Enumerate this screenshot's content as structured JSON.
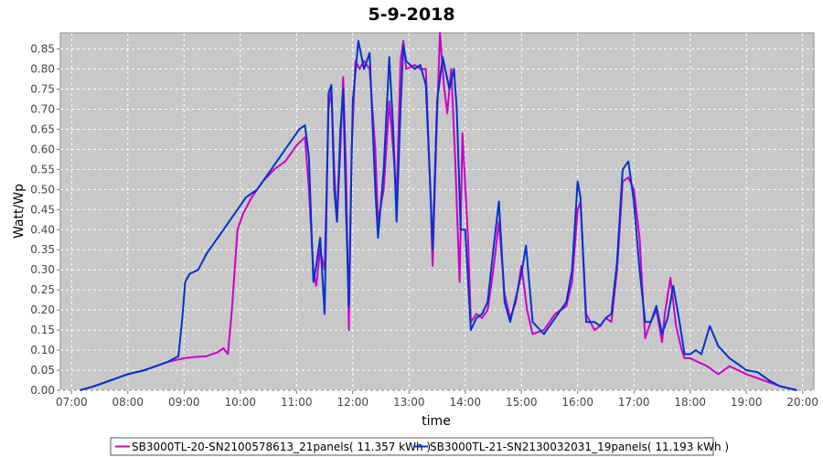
{
  "chart_data": {
    "type": "line",
    "title": "5-9-2018",
    "xlabel": "time",
    "ylabel": "Watt/Wp",
    "x_ticks": [
      "07:00",
      "08:00",
      "09:00",
      "10:00",
      "11:00",
      "12:00",
      "13:00",
      "14:00",
      "15:00",
      "16:00",
      "17:00",
      "18:00",
      "19:00",
      "20:00"
    ],
    "y_ticks": [
      "0.00",
      "0.05",
      "0.10",
      "0.15",
      "0.20",
      "0.25",
      "0.30",
      "0.35",
      "0.40",
      "0.45",
      "0.50",
      "0.55",
      "0.60",
      "0.65",
      "0.70",
      "0.75",
      "0.80",
      "0.85"
    ],
    "xlim": [
      6.8,
      20.2
    ],
    "ylim": [
      0,
      0.89
    ],
    "grid": true,
    "legend_position": "bottom",
    "series": [
      {
        "name": "SB3000TL-20-SN2100578613_21panels( 11.357 kWh )",
        "color": "#cc00cc",
        "points": [
          [
            7.15,
            0.0
          ],
          [
            7.4,
            0.01
          ],
          [
            7.7,
            0.025
          ],
          [
            8.0,
            0.04
          ],
          [
            8.3,
            0.05
          ],
          [
            8.5,
            0.06
          ],
          [
            8.7,
            0.07
          ],
          [
            9.0,
            0.08
          ],
          [
            9.2,
            0.083
          ],
          [
            9.4,
            0.085
          ],
          [
            9.6,
            0.095
          ],
          [
            9.7,
            0.105
          ],
          [
            9.78,
            0.09
          ],
          [
            9.85,
            0.2
          ],
          [
            9.95,
            0.4
          ],
          [
            10.05,
            0.44
          ],
          [
            10.2,
            0.48
          ],
          [
            10.4,
            0.52
          ],
          [
            10.6,
            0.55
          ],
          [
            10.8,
            0.57
          ],
          [
            11.0,
            0.61
          ],
          [
            11.15,
            0.63
          ],
          [
            11.22,
            0.5
          ],
          [
            11.3,
            0.3
          ],
          [
            11.35,
            0.26
          ],
          [
            11.42,
            0.35
          ],
          [
            11.5,
            0.3
          ],
          [
            11.57,
            0.7
          ],
          [
            11.62,
            0.75
          ],
          [
            11.67,
            0.55
          ],
          [
            11.72,
            0.42
          ],
          [
            11.78,
            0.6
          ],
          [
            11.83,
            0.78
          ],
          [
            11.88,
            0.55
          ],
          [
            11.93,
            0.15
          ],
          [
            11.98,
            0.6
          ],
          [
            12.05,
            0.82
          ],
          [
            12.12,
            0.8
          ],
          [
            12.2,
            0.82
          ],
          [
            12.3,
            0.8
          ],
          [
            12.4,
            0.6
          ],
          [
            12.45,
            0.42
          ],
          [
            12.55,
            0.5
          ],
          [
            12.65,
            0.72
          ],
          [
            12.72,
            0.6
          ],
          [
            12.78,
            0.48
          ],
          [
            12.85,
            0.82
          ],
          [
            12.9,
            0.87
          ],
          [
            12.95,
            0.8
          ],
          [
            13.1,
            0.81
          ],
          [
            13.2,
            0.8
          ],
          [
            13.3,
            0.8
          ],
          [
            13.38,
            0.5
          ],
          [
            13.42,
            0.31
          ],
          [
            13.48,
            0.6
          ],
          [
            13.55,
            0.89
          ],
          [
            13.62,
            0.76
          ],
          [
            13.68,
            0.69
          ],
          [
            13.75,
            0.8
          ],
          [
            13.82,
            0.58
          ],
          [
            13.9,
            0.27
          ],
          [
            13.95,
            0.64
          ],
          [
            14.05,
            0.38
          ],
          [
            14.1,
            0.17
          ],
          [
            14.2,
            0.19
          ],
          [
            14.3,
            0.18
          ],
          [
            14.4,
            0.2
          ],
          [
            14.5,
            0.3
          ],
          [
            14.6,
            0.42
          ],
          [
            14.7,
            0.24
          ],
          [
            14.8,
            0.18
          ],
          [
            14.9,
            0.22
          ],
          [
            15.0,
            0.31
          ],
          [
            15.1,
            0.2
          ],
          [
            15.2,
            0.14
          ],
          [
            15.4,
            0.15
          ],
          [
            15.6,
            0.19
          ],
          [
            15.8,
            0.21
          ],
          [
            15.9,
            0.27
          ],
          [
            16.0,
            0.45
          ],
          [
            16.05,
            0.47
          ],
          [
            16.15,
            0.19
          ],
          [
            16.3,
            0.15
          ],
          [
            16.4,
            0.16
          ],
          [
            16.5,
            0.18
          ],
          [
            16.6,
            0.17
          ],
          [
            16.7,
            0.3
          ],
          [
            16.8,
            0.52
          ],
          [
            16.9,
            0.53
          ],
          [
            17.0,
            0.5
          ],
          [
            17.1,
            0.38
          ],
          [
            17.2,
            0.13
          ],
          [
            17.3,
            0.17
          ],
          [
            17.4,
            0.2
          ],
          [
            17.5,
            0.12
          ],
          [
            17.55,
            0.19
          ],
          [
            17.65,
            0.28
          ],
          [
            17.75,
            0.16
          ],
          [
            17.85,
            0.1
          ],
          [
            17.9,
            0.08
          ],
          [
            18.0,
            0.08
          ],
          [
            18.3,
            0.06
          ],
          [
            18.5,
            0.04
          ],
          [
            18.7,
            0.06
          ],
          [
            19.0,
            0.04
          ],
          [
            19.3,
            0.025
          ],
          [
            19.6,
            0.01
          ],
          [
            19.9,
            0.0
          ]
        ]
      },
      {
        "name": "SB3000TL-21-SN2130032031_19panels( 11.193 kWh )",
        "color": "#0033cc",
        "points": [
          [
            7.15,
            0.0
          ],
          [
            7.4,
            0.01
          ],
          [
            7.7,
            0.025
          ],
          [
            8.0,
            0.04
          ],
          [
            8.3,
            0.05
          ],
          [
            8.5,
            0.06
          ],
          [
            8.7,
            0.07
          ],
          [
            8.9,
            0.085
          ],
          [
            8.97,
            0.18
          ],
          [
            9.02,
            0.27
          ],
          [
            9.1,
            0.29
          ],
          [
            9.25,
            0.3
          ],
          [
            9.4,
            0.34
          ],
          [
            9.6,
            0.38
          ],
          [
            9.75,
            0.41
          ],
          [
            9.9,
            0.44
          ],
          [
            10.1,
            0.48
          ],
          [
            10.3,
            0.5
          ],
          [
            10.5,
            0.54
          ],
          [
            10.7,
            0.58
          ],
          [
            10.9,
            0.62
          ],
          [
            11.05,
            0.65
          ],
          [
            11.15,
            0.66
          ],
          [
            11.22,
            0.58
          ],
          [
            11.3,
            0.27
          ],
          [
            11.35,
            0.31
          ],
          [
            11.42,
            0.38
          ],
          [
            11.5,
            0.19
          ],
          [
            11.57,
            0.74
          ],
          [
            11.62,
            0.76
          ],
          [
            11.67,
            0.5
          ],
          [
            11.72,
            0.42
          ],
          [
            11.78,
            0.65
          ],
          [
            11.83,
            0.75
          ],
          [
            11.88,
            0.45
          ],
          [
            11.93,
            0.21
          ],
          [
            12.0,
            0.72
          ],
          [
            12.1,
            0.87
          ],
          [
            12.2,
            0.8
          ],
          [
            12.3,
            0.84
          ],
          [
            12.4,
            0.5
          ],
          [
            12.45,
            0.38
          ],
          [
            12.55,
            0.55
          ],
          [
            12.65,
            0.83
          ],
          [
            12.72,
            0.65
          ],
          [
            12.78,
            0.42
          ],
          [
            12.85,
            0.7
          ],
          [
            12.9,
            0.86
          ],
          [
            12.95,
            0.82
          ],
          [
            13.1,
            0.8
          ],
          [
            13.2,
            0.81
          ],
          [
            13.3,
            0.76
          ],
          [
            13.38,
            0.5
          ],
          [
            13.42,
            0.35
          ],
          [
            13.5,
            0.72
          ],
          [
            13.6,
            0.83
          ],
          [
            13.72,
            0.75
          ],
          [
            13.8,
            0.8
          ],
          [
            13.85,
            0.7
          ],
          [
            13.92,
            0.4
          ],
          [
            14.0,
            0.4
          ],
          [
            14.1,
            0.15
          ],
          [
            14.2,
            0.18
          ],
          [
            14.3,
            0.19
          ],
          [
            14.4,
            0.22
          ],
          [
            14.5,
            0.35
          ],
          [
            14.6,
            0.47
          ],
          [
            14.7,
            0.22
          ],
          [
            14.8,
            0.17
          ],
          [
            14.9,
            0.23
          ],
          [
            15.0,
            0.29
          ],
          [
            15.08,
            0.36
          ],
          [
            15.2,
            0.17
          ],
          [
            15.4,
            0.14
          ],
          [
            15.6,
            0.18
          ],
          [
            15.8,
            0.22
          ],
          [
            15.9,
            0.3
          ],
          [
            16.0,
            0.52
          ],
          [
            16.05,
            0.48
          ],
          [
            16.15,
            0.17
          ],
          [
            16.3,
            0.17
          ],
          [
            16.4,
            0.16
          ],
          [
            16.5,
            0.18
          ],
          [
            16.6,
            0.19
          ],
          [
            16.7,
            0.32
          ],
          [
            16.8,
            0.55
          ],
          [
            16.9,
            0.57
          ],
          [
            17.0,
            0.47
          ],
          [
            17.1,
            0.3
          ],
          [
            17.2,
            0.17
          ],
          [
            17.3,
            0.17
          ],
          [
            17.4,
            0.21
          ],
          [
            17.5,
            0.14
          ],
          [
            17.6,
            0.18
          ],
          [
            17.7,
            0.26
          ],
          [
            17.8,
            0.18
          ],
          [
            17.9,
            0.09
          ],
          [
            18.0,
            0.09
          ],
          [
            18.1,
            0.1
          ],
          [
            18.2,
            0.09
          ],
          [
            18.35,
            0.16
          ],
          [
            18.5,
            0.11
          ],
          [
            18.7,
            0.08
          ],
          [
            18.9,
            0.06
          ],
          [
            19.0,
            0.05
          ],
          [
            19.2,
            0.045
          ],
          [
            19.4,
            0.025
          ],
          [
            19.6,
            0.01
          ],
          [
            19.9,
            0.0
          ]
        ]
      }
    ]
  }
}
